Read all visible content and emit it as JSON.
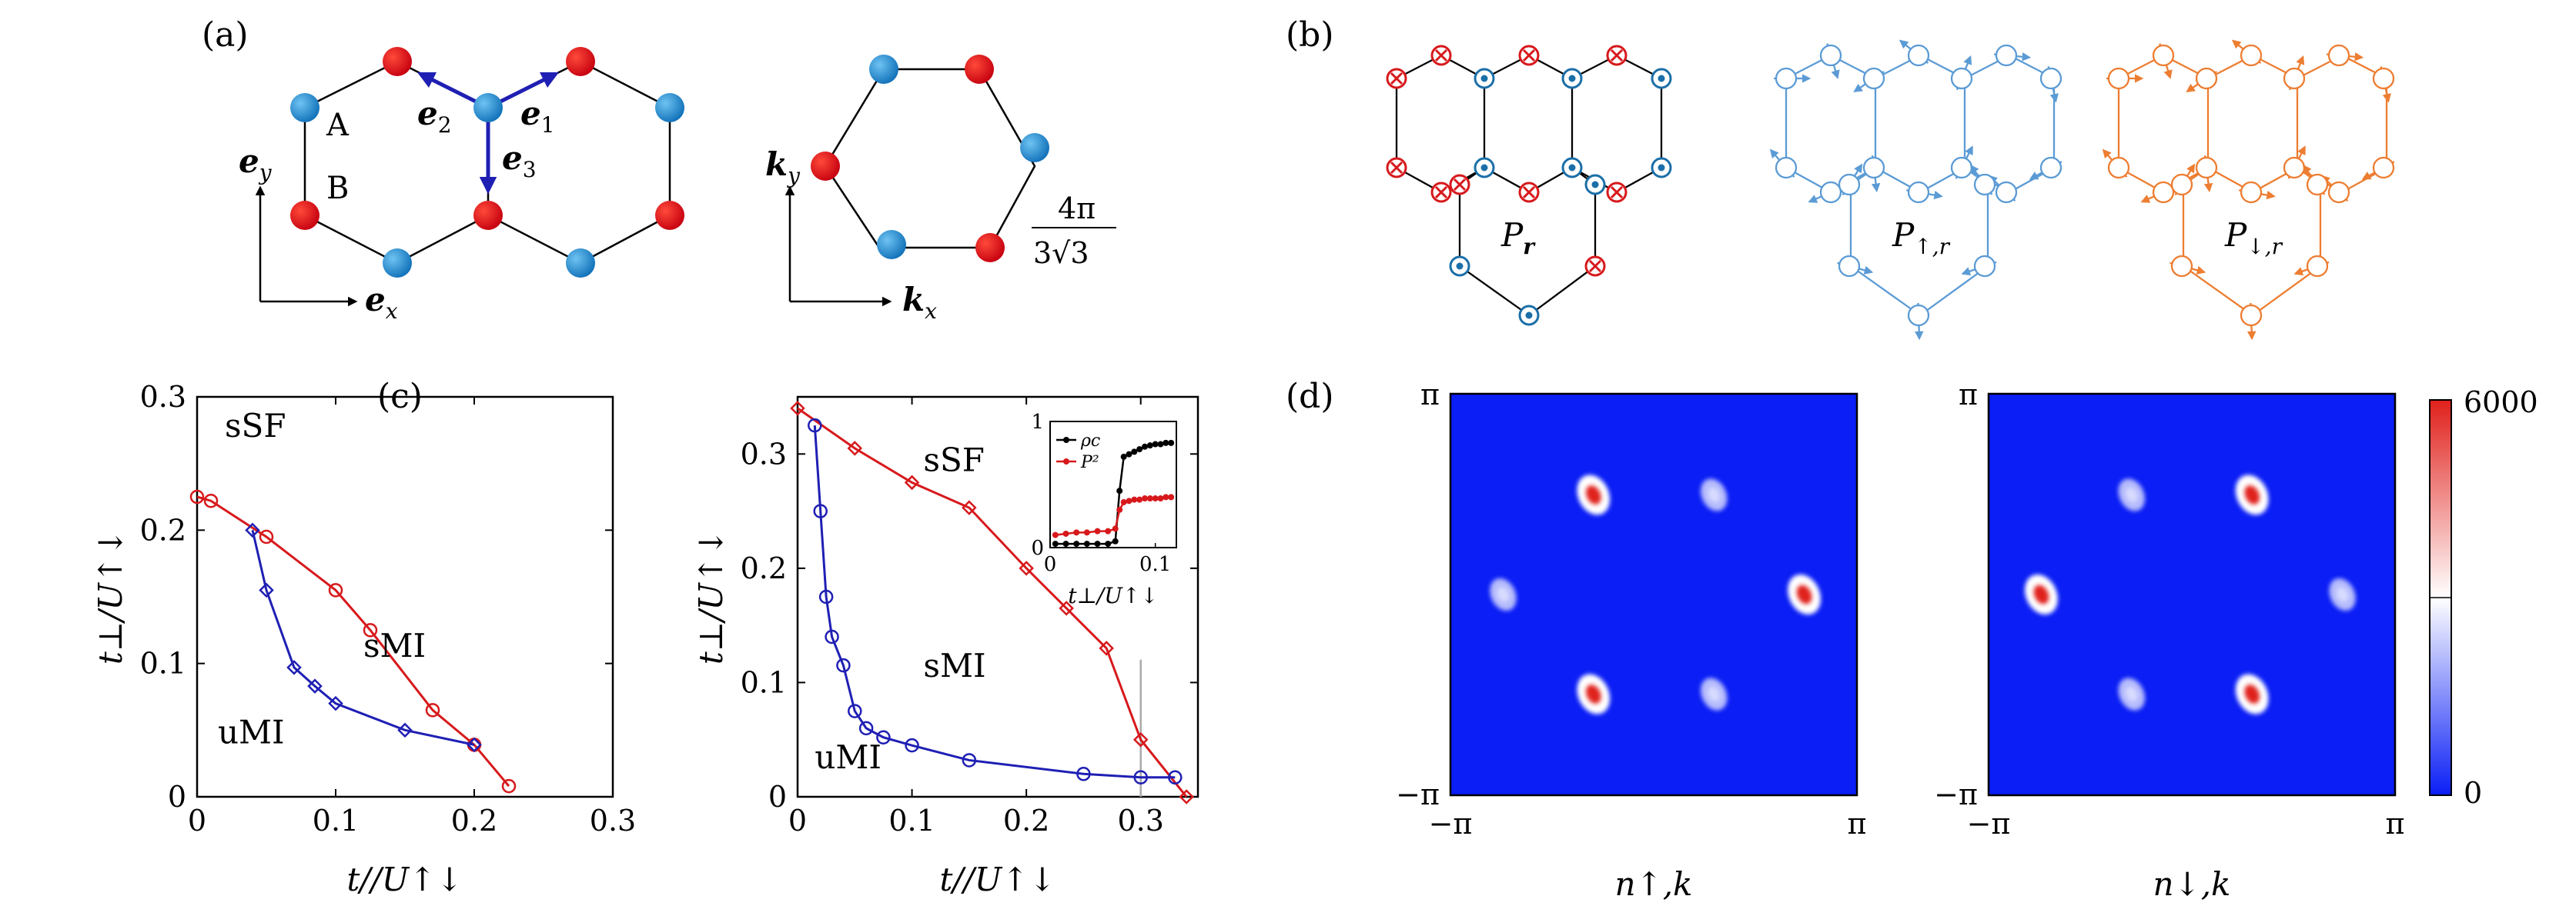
{
  "panel_labels": {
    "a": "(a)",
    "b": "(b)",
    "c": "(c)",
    "d": "(d)"
  },
  "colors": {
    "red": "#d7191c",
    "blue": "#1b8bd4",
    "navy": "#1f1fb4",
    "lightblue": "#5b9bd5",
    "orange": "#ed7d31",
    "black": "#000000",
    "heat_low": "#0a1ef5",
    "heat_high": "#e0201b"
  },
  "panel_a": {
    "site_A": "A",
    "site_B": "B",
    "e1": "e",
    "e1_sub": "1",
    "e2": "e",
    "e2_sub": "2",
    "e3": "e",
    "e3_sub": "3",
    "ex": "e",
    "ex_sub": "x",
    "ey": "e",
    "ey_sub": "y",
    "kx": "k",
    "kx_sub": "x",
    "ky": "k",
    "ky_sub": "y",
    "bz_num": "4π",
    "bz_den": "3√3"
  },
  "panel_b": {
    "p_r": "P",
    "p_r_sub": "r",
    "p_up": "P",
    "p_up_sub": "↑,r",
    "p_dn": "P",
    "p_dn_sub": "↓,r"
  },
  "chart_data": [
    {
      "type": "line",
      "xlabel": "t//U↑↓",
      "ylabel": "t⊥/U↑↓",
      "xlim": [
        0,
        0.3
      ],
      "ylim": [
        0,
        0.3
      ],
      "xticks": [
        "0",
        "0.1",
        "0.2",
        "0.3"
      ],
      "yticks": [
        "0",
        "0.1",
        "0.2",
        "0.3"
      ],
      "annotations": [
        "sSF",
        "sMI",
        "uMI"
      ],
      "series": [
        {
          "color": "#d7191c",
          "marker": "circle",
          "x": [
            0,
            0.01,
            0.05,
            0.1,
            0.125,
            0.17,
            0.2,
            0.225
          ],
          "y": [
            0.225,
            0.222,
            0.195,
            0.155,
            0.125,
            0.065,
            0.039,
            0.008
          ]
        },
        {
          "color": "#1f1fb4",
          "marker": "diamond",
          "x": [
            0.04,
            0.05,
            0.07,
            0.085,
            0.1,
            0.15,
            0.2
          ],
          "y": [
            0.2,
            0.155,
            0.097,
            0.083,
            0.07,
            0.05,
            0.039
          ]
        }
      ]
    },
    {
      "type": "line",
      "xlabel": "t//U↑↓",
      "ylabel": "t⊥/U↑↓",
      "xlim": [
        0,
        0.35
      ],
      "ylim": [
        0,
        0.35
      ],
      "xticks": [
        "0",
        "0.1",
        "0.2",
        "0.3"
      ],
      "yticks": [
        "0",
        "0.1",
        "0.2",
        "0.3"
      ],
      "annotations": [
        "sSF",
        "sMI",
        "uMI"
      ],
      "vline_x": 0.3,
      "series": [
        {
          "color": "#d7191c",
          "marker": "diamond",
          "x": [
            0,
            0.05,
            0.1,
            0.15,
            0.2,
            0.235,
            0.27,
            0.3,
            0.34
          ],
          "y": [
            0.34,
            0.305,
            0.275,
            0.253,
            0.2,
            0.165,
            0.13,
            0.05,
            0
          ]
        },
        {
          "color": "#1f1fb4",
          "marker": "circle",
          "x": [
            0.015,
            0.02,
            0.025,
            0.03,
            0.04,
            0.05,
            0.06,
            0.075,
            0.1,
            0.15,
            0.25,
            0.3,
            0.33
          ],
          "y": [
            0.325,
            0.25,
            0.175,
            0.14,
            0.115,
            0.075,
            0.06,
            0.052,
            0.045,
            0.032,
            0.02,
            0.017,
            0.017
          ]
        }
      ],
      "inset": {
        "xlabel": "t⊥/U↑↓",
        "xlim": [
          0,
          0.12
        ],
        "ylim": [
          0,
          1
        ],
        "xticks": [
          "0",
          "0.1"
        ],
        "yticks": [
          "0",
          "1"
        ],
        "legend": [
          "ρc",
          "P²"
        ],
        "series": [
          {
            "name": "ρc",
            "color": "#000000",
            "x": [
              0.005,
              0.015,
              0.025,
              0.035,
              0.045,
              0.055,
              0.062,
              0.066,
              0.07,
              0.075,
              0.08,
              0.085,
              0.09,
              0.095,
              0.1,
              0.105,
              0.11,
              0.115
            ],
            "y": [
              0.03,
              0.03,
              0.03,
              0.03,
              0.03,
              0.03,
              0.05,
              0.45,
              0.72,
              0.74,
              0.76,
              0.78,
              0.8,
              0.81,
              0.82,
              0.82,
              0.83,
              0.83
            ]
          },
          {
            "name": "P²",
            "color": "#d7191c",
            "x": [
              0.005,
              0.015,
              0.025,
              0.035,
              0.045,
              0.055,
              0.062,
              0.066,
              0.07,
              0.075,
              0.08,
              0.085,
              0.09,
              0.095,
              0.1,
              0.105,
              0.11,
              0.115
            ],
            "y": [
              0.1,
              0.11,
              0.12,
              0.12,
              0.13,
              0.13,
              0.15,
              0.3,
              0.36,
              0.37,
              0.38,
              0.38,
              0.39,
              0.39,
              0.39,
              0.39,
              0.4,
              0.4
            ]
          }
        ]
      }
    },
    {
      "type": "heatmap",
      "xlabel": "n↑,k",
      "xticks": [
        "−π",
        "π"
      ],
      "yticks": [
        "−π",
        "π"
      ],
      "peaks": [
        {
          "x": -0.4,
          "y": 0.67,
          "value": 6000
        },
        {
          "x": 0.4,
          "y": 0.67,
          "value": 1500
        },
        {
          "x": -1.0,
          "y": 0.0,
          "value": 1500
        },
        {
          "x": 1.0,
          "y": 0.0,
          "value": 6000
        },
        {
          "x": -0.4,
          "y": -0.67,
          "value": 6000
        },
        {
          "x": 0.4,
          "y": -0.67,
          "value": 1500
        }
      ]
    },
    {
      "type": "heatmap",
      "xlabel": "n↓,k",
      "xticks": [
        "−π",
        "π"
      ],
      "yticks": [
        "−π",
        "π"
      ],
      "colorbar": {
        "min": 0,
        "max": 6000,
        "ticks": [
          "0",
          "6000"
        ]
      },
      "peaks": [
        {
          "x": -0.4,
          "y": 0.67,
          "value": 1500
        },
        {
          "x": 0.4,
          "y": 0.67,
          "value": 6000
        },
        {
          "x": -1.0,
          "y": 0.0,
          "value": 6000
        },
        {
          "x": 1.0,
          "y": 0.0,
          "value": 1500
        },
        {
          "x": -0.4,
          "y": -0.67,
          "value": 1500
        },
        {
          "x": 0.4,
          "y": -0.67,
          "value": 6000
        }
      ]
    }
  ]
}
